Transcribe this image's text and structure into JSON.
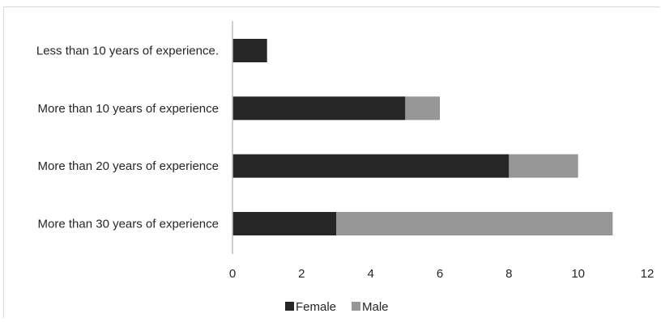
{
  "chart_data": {
    "type": "bar",
    "orientation": "horizontal",
    "stacked": true,
    "categories": [
      "Less than 10 years of experience.",
      "More than 10 years of experience",
      "More than 20 years of experience",
      "More than 30 years of experience"
    ],
    "series": [
      {
        "name": "Female",
        "color": "#262626",
        "values": [
          1,
          5,
          8,
          3
        ]
      },
      {
        "name": "Male",
        "color": "#969696",
        "values": [
          0,
          1,
          2,
          8
        ]
      }
    ],
    "xlim": [
      0,
      12
    ],
    "x_ticks": [
      "0",
      "2",
      "4",
      "6",
      "8",
      "10",
      "12"
    ],
    "grid": false,
    "legend_position": "bottom",
    "title": "",
    "xlabel": "",
    "ylabel": ""
  }
}
